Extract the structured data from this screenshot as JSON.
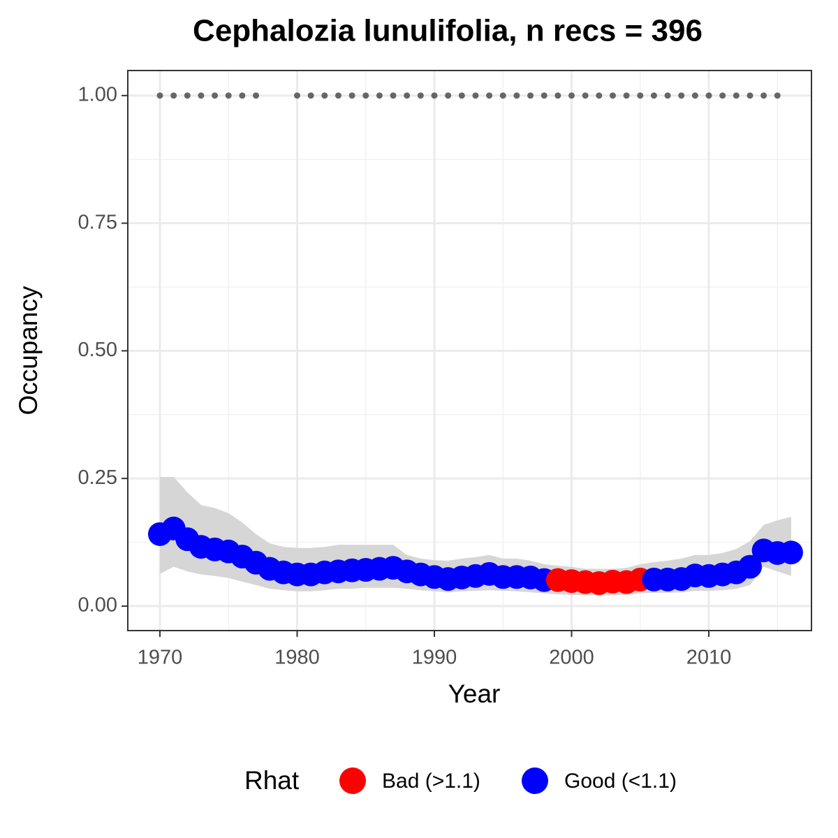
{
  "chart_data": {
    "type": "occupancy",
    "title": "Cephalozia lunulifolia, n recs = 396",
    "x_label": "Year",
    "y_label": "Occupancy",
    "x": [
      1970,
      1971,
      1972,
      1973,
      1974,
      1975,
      1976,
      1977,
      1978,
      1979,
      1980,
      1981,
      1982,
      1983,
      1984,
      1985,
      1986,
      1987,
      1988,
      1989,
      1990,
      1991,
      1992,
      1993,
      1994,
      1995,
      1996,
      1997,
      1998,
      1999,
      2000,
      2001,
      2002,
      2003,
      2004,
      2005,
      2006,
      2007,
      2008,
      2009,
      2010,
      2011,
      2012,
      2013,
      2014,
      2015,
      2016
    ],
    "values": [
      0.141,
      0.152,
      0.131,
      0.116,
      0.111,
      0.107,
      0.097,
      0.085,
      0.073,
      0.066,
      0.062,
      0.062,
      0.066,
      0.068,
      0.07,
      0.071,
      0.073,
      0.075,
      0.068,
      0.062,
      0.057,
      0.053,
      0.056,
      0.059,
      0.063,
      0.057,
      0.057,
      0.056,
      0.051,
      0.051,
      0.049,
      0.047,
      0.045,
      0.048,
      0.047,
      0.052,
      0.052,
      0.052,
      0.053,
      0.06,
      0.059,
      0.062,
      0.066,
      0.077,
      0.109,
      0.104,
      0.105
    ],
    "upper": [
      0.253,
      0.253,
      0.223,
      0.198,
      0.192,
      0.182,
      0.164,
      0.141,
      0.123,
      0.116,
      0.114,
      0.114,
      0.116,
      0.12,
      0.12,
      0.12,
      0.12,
      0.12,
      0.1,
      0.093,
      0.09,
      0.089,
      0.093,
      0.096,
      0.1,
      0.093,
      0.093,
      0.089,
      0.082,
      0.079,
      0.077,
      0.073,
      0.073,
      0.073,
      0.075,
      0.082,
      0.086,
      0.089,
      0.093,
      0.1,
      0.1,
      0.104,
      0.112,
      0.127,
      0.159,
      0.168,
      0.175
    ],
    "lower": [
      0.063,
      0.077,
      0.068,
      0.062,
      0.059,
      0.055,
      0.048,
      0.041,
      0.034,
      0.031,
      0.029,
      0.029,
      0.031,
      0.034,
      0.034,
      0.036,
      0.036,
      0.036,
      0.034,
      0.031,
      0.029,
      0.027,
      0.029,
      0.03,
      0.031,
      0.03,
      0.029,
      0.027,
      0.025,
      0.023,
      0.022,
      0.021,
      0.021,
      0.021,
      0.022,
      0.025,
      0.026,
      0.026,
      0.027,
      0.03,
      0.03,
      0.031,
      0.034,
      0.041,
      0.077,
      0.068,
      0.059
    ],
    "point_class": [
      1,
      1,
      1,
      1,
      1,
      1,
      1,
      1,
      1,
      1,
      1,
      1,
      1,
      1,
      1,
      1,
      1,
      1,
      1,
      1,
      1,
      1,
      1,
      1,
      1,
      1,
      1,
      1,
      1,
      0,
      0,
      0,
      0,
      0,
      0,
      0,
      1,
      1,
      1,
      1,
      1,
      1,
      1,
      1,
      1,
      1,
      1
    ],
    "record_x": [
      1970,
      1971,
      1972,
      1973,
      1974,
      1975,
      1976,
      1977,
      1980,
      1981,
      1982,
      1983,
      1984,
      1985,
      1986,
      1987,
      1988,
      1989,
      1990,
      1991,
      1992,
      1993,
      1994,
      1995,
      1996,
      1997,
      1998,
      1999,
      2000,
      2001,
      2002,
      2003,
      2004,
      2005,
      2006,
      2007,
      2008,
      2009,
      2010,
      2011,
      2012,
      2013,
      2014,
      2015
    ],
    "record_values": [
      1,
      1,
      1,
      1,
      1,
      1,
      1,
      1,
      1,
      1,
      1,
      1,
      1,
      1,
      1,
      1,
      1,
      1,
      1,
      1,
      1,
      1,
      1,
      1,
      1,
      1,
      1,
      1,
      1,
      1,
      1,
      1,
      1,
      1,
      1,
      1,
      1,
      1,
      1,
      1,
      1,
      1,
      1,
      1
    ],
    "record_color": "#666666",
    "ribbon_color": "#d6d6d6",
    "legend": {
      "title": "Rhat",
      "position": "bottom",
      "entries": [
        {
          "name": "Bad (>1.1)",
          "color": "#ff0000"
        },
        {
          "name": "Good (<1.1)",
          "color": "#0000ff"
        }
      ]
    },
    "xlim": [
      1967.66,
      2017.48
    ],
    "ylim": [
      -0.048,
      1.049
    ],
    "xticks": [
      1970,
      1980,
      1990,
      2000,
      2010
    ],
    "yticks": [
      {
        "value": 0,
        "label": "0.00"
      },
      {
        "value": 0.25,
        "label": "0.25"
      },
      {
        "value": 0.5,
        "label": "0.50"
      },
      {
        "value": 0.75,
        "label": "0.75"
      },
      {
        "value": 1,
        "label": "1.00"
      }
    ],
    "x_minor_ticks": [
      1975,
      1985,
      1995,
      2005,
      2015
    ],
    "y_minor_ticks": [
      0.125,
      0.375,
      0.625,
      0.875
    ],
    "grid": true
  }
}
